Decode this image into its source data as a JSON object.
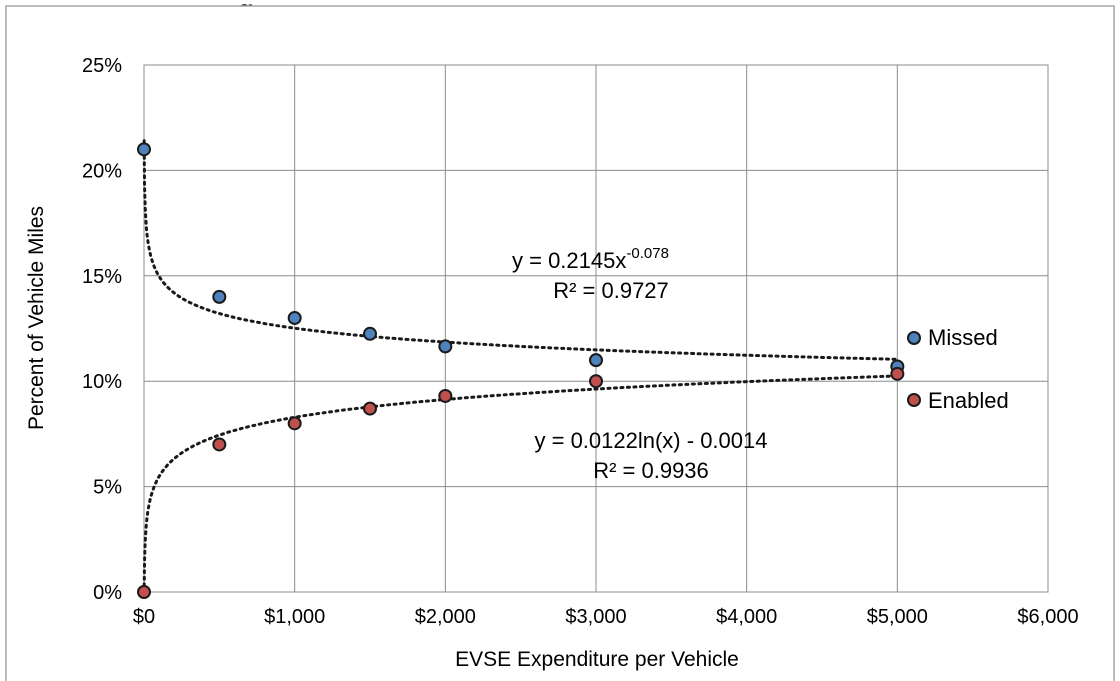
{
  "chart_data": {
    "type": "scatter",
    "title_fragment": "g",
    "xlabel": "EVSE Expenditure per Vehicle",
    "ylabel": "Percent of Vehicle Miles",
    "xlim": [
      0,
      6000
    ],
    "ylim": [
      0,
      0.25
    ],
    "x_ticks": [
      0,
      1000,
      2000,
      3000,
      4000,
      5000,
      6000
    ],
    "x_tick_labels": [
      "$0",
      "$1,000",
      "$2,000",
      "$3,000",
      "$4,000",
      "$5,000",
      "$6,000"
    ],
    "y_ticks": [
      0,
      0.05,
      0.1,
      0.15,
      0.2,
      0.25
    ],
    "y_tick_labels": [
      "0%",
      "5%",
      "10%",
      "15%",
      "20%",
      "25%"
    ],
    "grid": true,
    "legend_position": "right",
    "series": [
      {
        "name": "Missed",
        "color": "#4f81bd",
        "x": [
          0,
          500,
          1000,
          1500,
          2000,
          3000,
          5000
        ],
        "y": [
          0.21,
          0.14,
          0.13,
          0.1225,
          0.1165,
          0.11,
          0.107
        ],
        "trendline": {
          "type": "power",
          "a": 0.2145,
          "b": -0.078,
          "equation_base": "y = 0.2145x",
          "equation_exponent": "-0.078",
          "r2_text": "R² = 0.9727"
        }
      },
      {
        "name": "Enabled",
        "color": "#c0504d",
        "x": [
          0,
          500,
          1000,
          1500,
          2000,
          3000,
          5000
        ],
        "y": [
          0.0,
          0.07,
          0.08,
          0.087,
          0.093,
          0.1,
          0.1035
        ],
        "trendline": {
          "type": "log",
          "a": 0.0122,
          "b": -0.0014,
          "equation_text": "y = 0.0122ln(x) - 0.0014",
          "r2_text": "R² = 0.9936"
        }
      }
    ]
  }
}
